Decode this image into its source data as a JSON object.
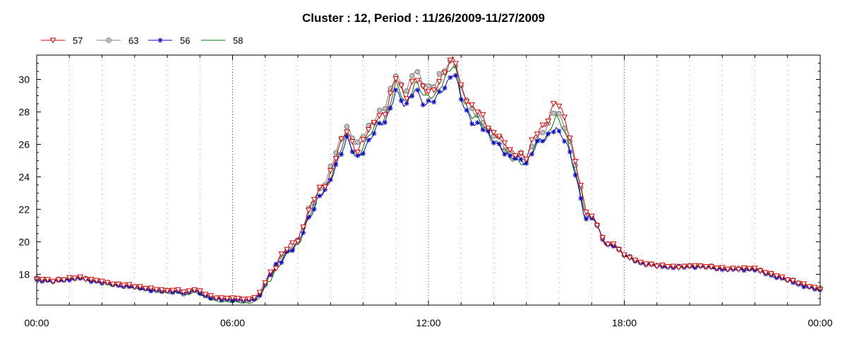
{
  "chart_data": {
    "type": "line",
    "title": "Cluster : 12, Period : 11/26/2009-11/27/2009",
    "xlabel": "",
    "ylabel": "",
    "x_ticks": [
      {
        "hour": 0,
        "label": "00:00"
      },
      {
        "hour": 6,
        "label": "06:00"
      },
      {
        "hour": 12,
        "label": "12:00"
      },
      {
        "hour": 18,
        "label": "18:00"
      },
      {
        "hour": 24,
        "label": "00:00"
      }
    ],
    "xlim": [
      0,
      24
    ],
    "ylim": [
      16.1,
      31.5
    ],
    "y_ticks": [
      18,
      20,
      22,
      24,
      26,
      28,
      30
    ],
    "grid": "vertical dotted lines",
    "legend_position": "top-left",
    "base_series": {
      "x": [
        0,
        0.5,
        1,
        1.3,
        1.7,
        2,
        2.5,
        3,
        3.5,
        4,
        4.3,
        4.6,
        4.8,
        5,
        5.3,
        5.6,
        6,
        6.5,
        6.8,
        7,
        7.3,
        7.6,
        8,
        8.3,
        8.6,
        8.9,
        9.2,
        9.5,
        9.8,
        10.1,
        10.4,
        10.7,
        11,
        11.3,
        11.6,
        11.9,
        12.2,
        12.5,
        12.8,
        13.0,
        13.3,
        13.6,
        13.9,
        14.2,
        14.5,
        14.8,
        15.0,
        15.3,
        15.6,
        15.9,
        16.2,
        16.5,
        16.8,
        17.1,
        17.4,
        17.7,
        18,
        18.5,
        19,
        19.5,
        20,
        20.5,
        21,
        21.5,
        22,
        22.5,
        23,
        23.5,
        24
      ],
      "y": [
        17.7,
        17.6,
        17.7,
        17.8,
        17.6,
        17.5,
        17.3,
        17.2,
        17.0,
        16.9,
        16.9,
        16.75,
        17.0,
        16.8,
        16.5,
        16.4,
        16.35,
        16.3,
        16.5,
        17.3,
        18.3,
        19.2,
        19.9,
        21.5,
        22.8,
        23.5,
        25.2,
        26.6,
        25.3,
        26.3,
        27.3,
        27.8,
        29.8,
        28.6,
        30.0,
        28.9,
        29.2,
        30.2,
        31.1,
        29.3,
        28.0,
        27.6,
        26.7,
        26.2,
        25.4,
        25.3,
        25.1,
        26.4,
        26.9,
        28.2,
        27.1,
        24.8,
        21.8,
        21.4,
        19.9,
        19.8,
        19.2,
        18.7,
        18.55,
        18.45,
        18.5,
        18.5,
        18.35,
        18.35,
        18.35,
        18.0,
        17.7,
        17.35,
        17.1
      ]
    },
    "series": [
      {
        "name": "57",
        "color": "#dd0000",
        "marker": "triangle-down-open",
        "offsets": {
          "x": [
            0,
            11,
            12,
            13.5,
            15,
            15.5,
            15.9,
            16.5,
            17,
            24
          ],
          "d": [
            0,
            0.3,
            0.25,
            0.3,
            0.1,
            0.4,
            0.5,
            0.3,
            0,
            0
          ]
        }
      },
      {
        "name": "63",
        "color": "#808080",
        "marker": "circle-gray",
        "offsets": {
          "x": [
            0,
            7.5,
            8.5,
            9.5,
            10.5,
            11.3,
            12,
            13,
            14,
            17,
            24
          ],
          "d": [
            0,
            0.1,
            0.2,
            0.6,
            0.5,
            0.6,
            0.6,
            0.2,
            0,
            0,
            0
          ]
        }
      },
      {
        "name": "56",
        "color": "#0000cc",
        "marker": "asterisk",
        "offsets": {
          "x": [
            0,
            7.3,
            8.5,
            10,
            11,
            12,
            13,
            14,
            15,
            15.5,
            16,
            16.5,
            17,
            18,
            24
          ],
          "d": [
            -0.05,
            0.1,
            -0.2,
            -0.3,
            -0.4,
            -0.5,
            -0.6,
            -0.3,
            -0.2,
            -0.5,
            -1.1,
            -0.6,
            -0.1,
            0,
            -0.1
          ]
        }
      },
      {
        "name": "58",
        "color": "#007700",
        "marker": "none",
        "offsets": {
          "x": [
            0,
            10,
            12,
            13,
            15,
            15.9,
            16.5,
            17,
            24
          ],
          "d": [
            0,
            -0.1,
            -0.1,
            -0.2,
            -0.3,
            -0.5,
            -0.4,
            0,
            0
          ]
        }
      }
    ]
  }
}
